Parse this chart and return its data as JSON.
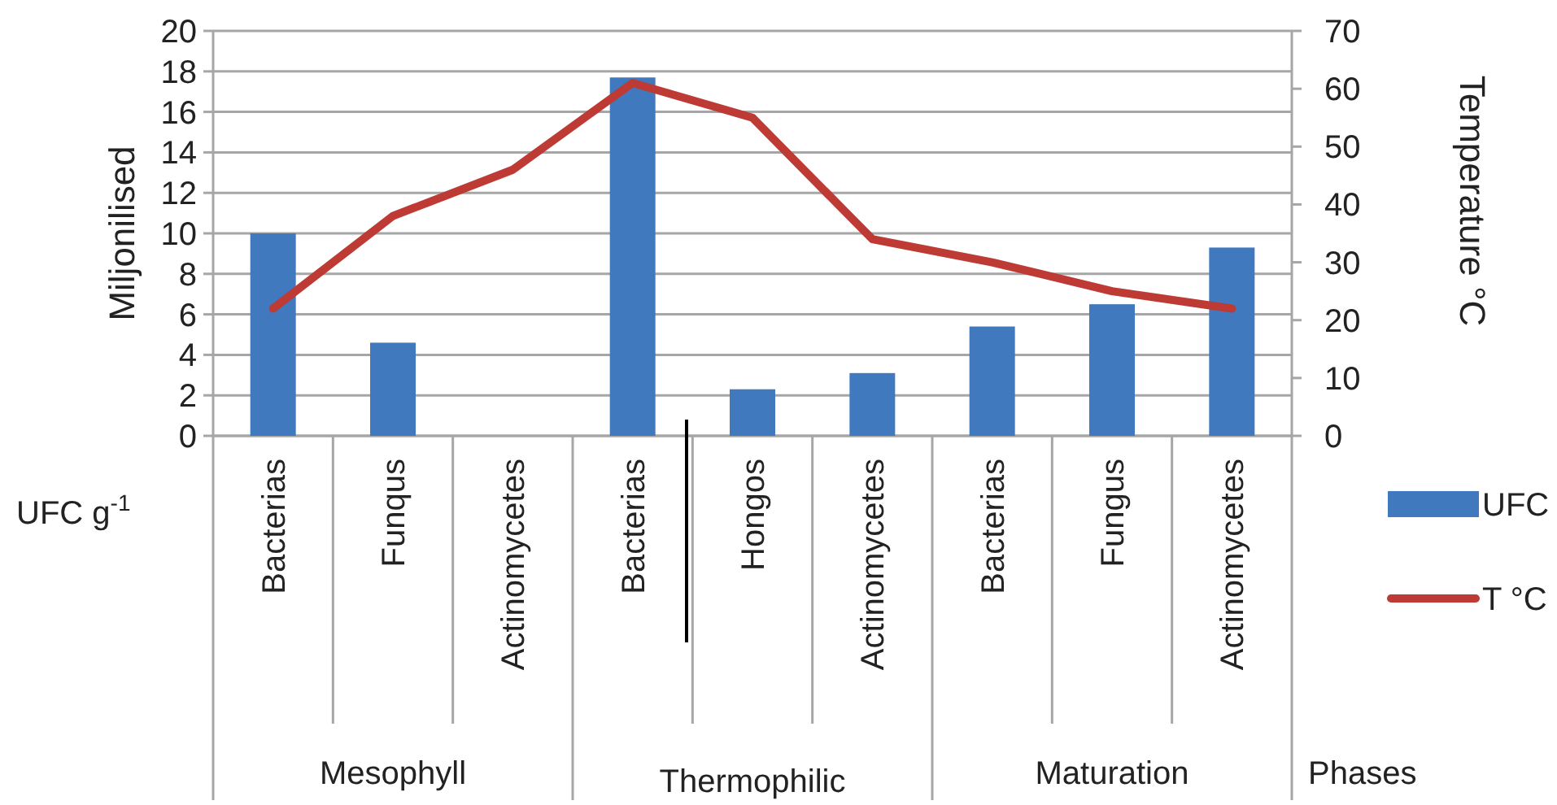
{
  "chart_data": {
    "type": "bar",
    "ylabel": "Miljonilised",
    "y2label": "Temperature °C",
    "xlabel": "UFC g$^{-1}$",
    "categories": [
      "Bacterias",
      "Funqus",
      "Actinomycetes",
      "Bacterias",
      "Hongos",
      "Actinomycetes",
      "Bacterias",
      "Fungus",
      "Actinomycetes"
    ],
    "series": [
      {
        "name": "UFC",
        "color": "#4079bd",
        "values": [
          10,
          4.6,
          0,
          17.7,
          2.3,
          3.1,
          5.4,
          6.5,
          9.3
        ]
      },
      {
        "name": "T °C",
        "type": "line",
        "axis": "y2",
        "color": "#be3a34",
        "values": [
          22,
          38,
          46,
          61,
          55,
          34,
          30,
          25,
          22
        ]
      }
    ],
    "ylim": [
      0,
      20
    ],
    "yticks": [
      0,
      2,
      4,
      6,
      8,
      10,
      12,
      14,
      16,
      18,
      20
    ],
    "y2lim": [
      0,
      70
    ],
    "y2ticks": [
      0,
      10,
      20,
      30,
      40,
      50,
      60,
      70
    ],
    "grid": "y",
    "legend": "right",
    "line_style": "solid",
    "marker": "none",
    "annotations": [
      "Mesophyll",
      "Thermophilic",
      "Maturation",
      "Phases"
    ]
  }
}
